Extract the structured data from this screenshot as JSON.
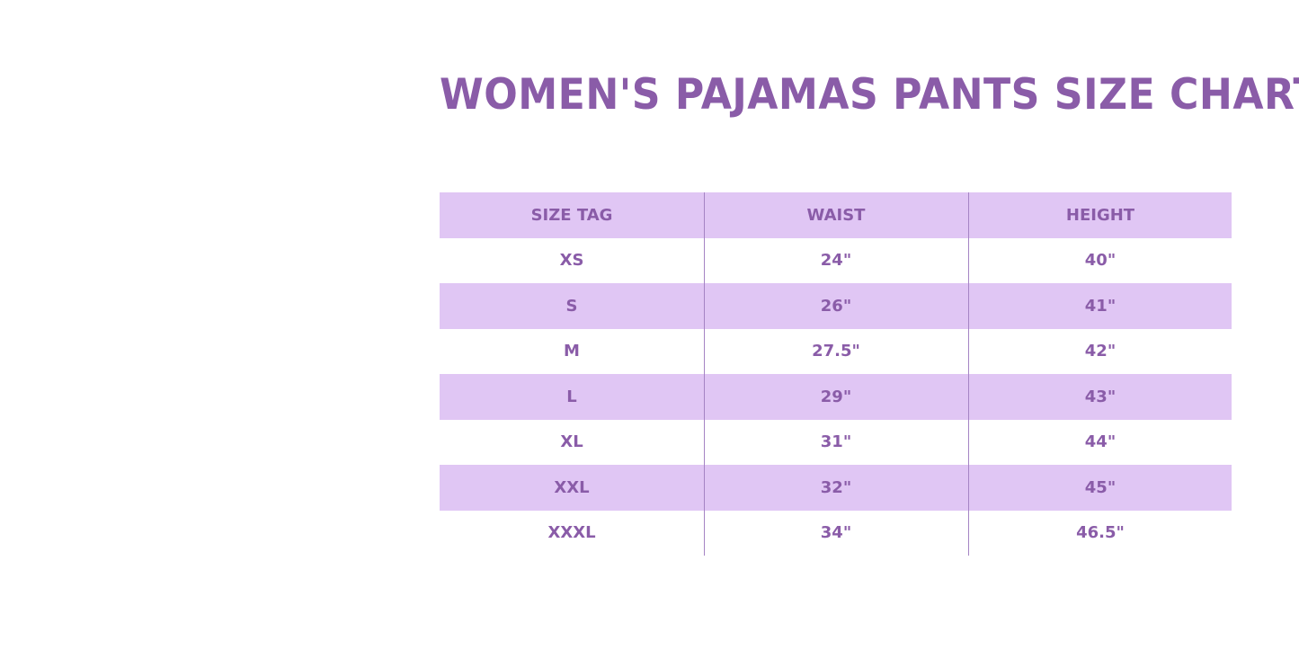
{
  "title": "WOMEN'S PAJAMAS PANTS SIZE CHART",
  "colors": {
    "title": "#8a5ca8",
    "band": "#e0c6f4",
    "divider": "#a584c4"
  },
  "table": {
    "headers": [
      "SIZE TAG",
      "WAIST",
      "HEIGHT"
    ],
    "rows": [
      [
        "XS",
        "24\"",
        "40\""
      ],
      [
        "S",
        "26\"",
        "41\""
      ],
      [
        "M",
        "27.5\"",
        "42\""
      ],
      [
        "L",
        "29\"",
        "43\""
      ],
      [
        "XL",
        "31\"",
        "44\""
      ],
      [
        "XXL",
        "32\"",
        "45\""
      ],
      [
        "XXXL",
        "34\"",
        "46.5\""
      ]
    ]
  }
}
